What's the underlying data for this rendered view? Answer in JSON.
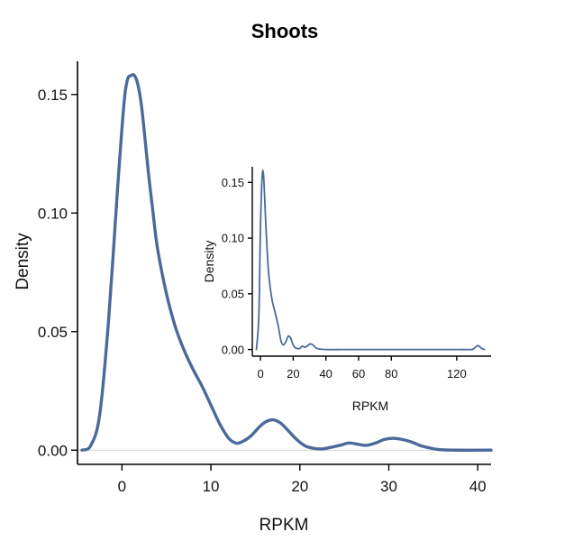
{
  "chart_data": [
    {
      "type": "line",
      "title": "Shoots",
      "xlabel": "RPKM",
      "ylabel": "Density",
      "xlim": [
        -5,
        41.5
      ],
      "ylim": [
        -0.006,
        0.164
      ],
      "xticks": [
        0,
        10,
        20,
        30,
        40
      ],
      "xtick_labels": [
        "0",
        "10",
        "20",
        "30",
        "40"
      ],
      "yticks": [
        0,
        0.05,
        0.1,
        0.15
      ],
      "ytick_labels": [
        "0.00",
        "0.05",
        "0.10",
        "0.15"
      ],
      "grid": false,
      "series_color": "#4a6a9a",
      "series": [
        {
          "x": [
            -4.5,
            -3.5,
            -2.5,
            -1.5,
            -0.5,
            0.2,
            0.6,
            1.0,
            1.4,
            1.8,
            2.2,
            2.6,
            3.0,
            3.5,
            4.0,
            5.0,
            6.0,
            7.0,
            8.0,
            9.0,
            10.0,
            11.0,
            12.0,
            12.8,
            13.5,
            14.5,
            15.5,
            16.2,
            17.0,
            17.8,
            18.5,
            19.5,
            20.5,
            21.5,
            22.5,
            23.5,
            24.5,
            25.5,
            26.5,
            27.5,
            28.5,
            29.5,
            30.5,
            31.5,
            32.5,
            33.5,
            34.5,
            35.5,
            37.0,
            41.5
          ],
          "y": [
            0.0,
            0.002,
            0.015,
            0.055,
            0.11,
            0.145,
            0.156,
            0.158,
            0.158,
            0.154,
            0.145,
            0.131,
            0.116,
            0.1,
            0.085,
            0.066,
            0.052,
            0.042,
            0.034,
            0.027,
            0.019,
            0.011,
            0.005,
            0.003,
            0.0035,
            0.006,
            0.01,
            0.012,
            0.0128,
            0.0115,
            0.009,
            0.005,
            0.002,
            0.0008,
            0.0005,
            0.0012,
            0.002,
            0.003,
            0.0025,
            0.002,
            0.003,
            0.0045,
            0.005,
            0.0045,
            0.0035,
            0.002,
            0.001,
            0.0003,
            0.0,
            0.0
          ]
        }
      ]
    },
    {
      "type": "line",
      "title": "",
      "xlabel": "RPKM",
      "ylabel": "Density",
      "xlim": [
        -5,
        141
      ],
      "ylim": [
        -0.006,
        0.164
      ],
      "xticks": [
        0,
        20,
        40,
        60,
        80,
        120
      ],
      "xtick_labels": [
        "0",
        "20",
        "40",
        "60",
        "80",
        "120"
      ],
      "yticks": [
        0,
        0.05,
        0.1,
        0.15
      ],
      "ytick_labels": [
        "0.00",
        "0.05",
        "0.10",
        "0.15"
      ],
      "grid": false,
      "series_color": "#4a6a9a",
      "series": [
        {
          "x": [
            -2.5,
            -1.0,
            0.0,
            1.0,
            1.8,
            2.6,
            3.5,
            5.0,
            7.0,
            9.0,
            11.0,
            12.5,
            14.0,
            15.5,
            17.0,
            18.5,
            20.0,
            22.0,
            24.0,
            25.5,
            27.0,
            28.5,
            30.5,
            32.5,
            34.5,
            40.0,
            60.0,
            80.0,
            100.0,
            120.0,
            129.0,
            131.0,
            133.0,
            135.0,
            137.0
          ],
          "y": [
            0.0,
            0.03,
            0.11,
            0.155,
            0.158,
            0.135,
            0.105,
            0.068,
            0.045,
            0.033,
            0.02,
            0.008,
            0.004,
            0.007,
            0.012,
            0.01,
            0.004,
            0.001,
            0.001,
            0.003,
            0.002,
            0.003,
            0.005,
            0.0035,
            0.001,
            0.0,
            0.0,
            0.0,
            0.0,
            0.0,
            0.0,
            0.0015,
            0.0035,
            0.0012,
            0.0
          ]
        }
      ]
    }
  ]
}
